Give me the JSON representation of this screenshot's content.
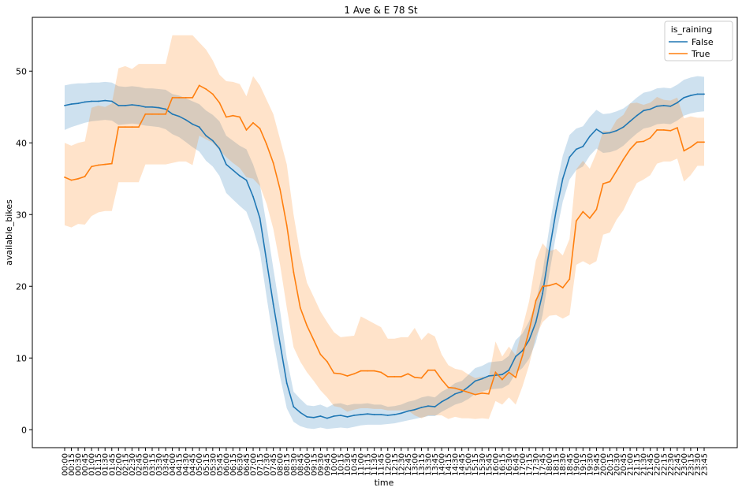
{
  "chart_data": {
    "type": "line",
    "title": "1 Ave & E 78 St",
    "xlabel": "time",
    "ylabel": "available_bikes",
    "ylim": [
      -2.5,
      57.5
    ],
    "yticks": [
      0,
      10,
      20,
      30,
      40,
      50
    ],
    "legend_title": "is_raining",
    "legend_position": "top-right",
    "categories": [
      "00:00",
      "00:15",
      "00:30",
      "00:45",
      "01:00",
      "01:15",
      "01:30",
      "01:45",
      "02:00",
      "02:15",
      "02:30",
      "02:45",
      "03:00",
      "03:15",
      "03:30",
      "03:45",
      "04:00",
      "04:15",
      "04:30",
      "04:45",
      "05:00",
      "05:15",
      "05:30",
      "05:45",
      "06:00",
      "06:15",
      "06:30",
      "06:45",
      "07:00",
      "07:15",
      "07:30",
      "07:45",
      "08:00",
      "08:15",
      "08:30",
      "08:45",
      "09:00",
      "09:15",
      "09:30",
      "09:45",
      "10:00",
      "10:15",
      "10:30",
      "10:45",
      "11:00",
      "11:15",
      "11:30",
      "11:45",
      "12:00",
      "12:15",
      "12:30",
      "12:45",
      "13:00",
      "13:15",
      "13:30",
      "13:45",
      "14:00",
      "14:15",
      "14:30",
      "14:45",
      "15:00",
      "15:15",
      "15:30",
      "15:45",
      "16:00",
      "16:15",
      "16:30",
      "16:45",
      "17:00",
      "17:15",
      "17:30",
      "17:45",
      "18:00",
      "18:15",
      "18:30",
      "18:45",
      "19:00",
      "19:15",
      "19:30",
      "19:45",
      "20:00",
      "20:15",
      "20:30",
      "20:45",
      "21:00",
      "21:15",
      "21:30",
      "21:45",
      "22:00",
      "22:15",
      "22:30",
      "22:45",
      "23:00",
      "23:15",
      "23:30",
      "23:45"
    ],
    "series": [
      {
        "name": "False",
        "color": "#1f77b4",
        "values": [
          45.2,
          45.4,
          45.5,
          45.7,
          45.8,
          45.8,
          45.9,
          45.8,
          45.2,
          45.2,
          45.3,
          45.2,
          45.0,
          45.0,
          44.9,
          44.7,
          44.0,
          43.7,
          43.2,
          42.6,
          42.2,
          41.0,
          40.3,
          39.2,
          37.0,
          36.2,
          35.4,
          34.8,
          32.5,
          29.5,
          23.5,
          17.5,
          12.0,
          6.5,
          3.2,
          2.4,
          1.8,
          1.7,
          1.9,
          1.6,
          1.9,
          2.0,
          1.8,
          2.0,
          2.1,
          2.2,
          2.1,
          2.1,
          2.0,
          2.1,
          2.3,
          2.6,
          2.8,
          3.1,
          3.3,
          3.2,
          3.9,
          4.4,
          5.0,
          5.3,
          6.0,
          6.8,
          7.1,
          7.5,
          7.6,
          7.7,
          8.3,
          10.2,
          11.0,
          12.5,
          15.0,
          19.0,
          25.0,
          30.5,
          35.0,
          38.0,
          39.1,
          39.5,
          40.9,
          41.9,
          41.3,
          41.4,
          41.7,
          42.2,
          43.0,
          43.8,
          44.5,
          44.7,
          45.1,
          45.2,
          45.1,
          45.6,
          46.3,
          46.6,
          46.8,
          46.8
        ],
        "ci_lower": [
          41.8,
          42.2,
          42.5,
          42.8,
          43.0,
          43.1,
          43.2,
          43.1,
          42.5,
          42.6,
          42.7,
          42.6,
          42.4,
          42.3,
          42.2,
          41.9,
          41.2,
          40.8,
          40.1,
          39.4,
          38.8,
          37.5,
          36.7,
          35.4,
          33.0,
          32.1,
          31.2,
          30.4,
          28.0,
          24.8,
          18.5,
          12.5,
          7.4,
          3.0,
          1.1,
          0.5,
          0.2,
          0.1,
          0.3,
          0.1,
          0.2,
          0.3,
          0.2,
          0.4,
          0.6,
          0.7,
          0.7,
          0.7,
          0.8,
          0.9,
          1.1,
          1.3,
          1.5,
          1.7,
          1.9,
          1.9,
          2.5,
          3.0,
          3.5,
          3.8,
          4.3,
          5.0,
          5.3,
          5.6,
          5.7,
          5.8,
          6.3,
          7.9,
          8.6,
          9.9,
          12.2,
          16.0,
          21.8,
          27.2,
          31.8,
          34.9,
          36.2,
          36.7,
          38.2,
          39.2,
          38.6,
          38.7,
          39.0,
          39.6,
          40.5,
          41.3,
          42.0,
          42.2,
          42.6,
          42.7,
          42.6,
          43.1,
          43.8,
          44.1,
          44.3,
          44.4
        ],
        "ci_upper": [
          48.0,
          48.2,
          48.3,
          48.3,
          48.4,
          48.4,
          48.5,
          48.4,
          47.9,
          47.8,
          47.9,
          47.8,
          47.6,
          47.6,
          47.5,
          47.4,
          46.8,
          46.6,
          46.2,
          45.8,
          45.4,
          44.5,
          43.9,
          43.0,
          41.0,
          40.3,
          39.6,
          39.1,
          37.0,
          34.2,
          28.5,
          22.5,
          16.6,
          10.0,
          5.3,
          4.3,
          3.4,
          3.3,
          3.5,
          3.1,
          3.6,
          3.7,
          3.4,
          3.6,
          3.6,
          3.7,
          3.5,
          3.5,
          3.2,
          3.3,
          3.5,
          3.9,
          4.1,
          4.5,
          4.7,
          4.5,
          5.3,
          5.8,
          6.5,
          6.8,
          7.7,
          8.6,
          8.9,
          9.4,
          9.5,
          9.6,
          10.3,
          12.5,
          13.4,
          15.1,
          17.8,
          22.0,
          28.2,
          33.8,
          38.2,
          41.1,
          42.0,
          42.3,
          43.6,
          44.6,
          44.0,
          44.1,
          44.4,
          44.8,
          45.5,
          46.3,
          47.0,
          47.2,
          47.6,
          47.7,
          47.6,
          48.1,
          48.8,
          49.1,
          49.3,
          49.2
        ]
      },
      {
        "name": "True",
        "color": "#ff7f0e",
        "values": [
          35.2,
          34.8,
          35.0,
          35.3,
          36.7,
          36.9,
          37.0,
          37.1,
          42.2,
          42.2,
          42.2,
          42.2,
          44.0,
          44.0,
          44.0,
          44.0,
          46.3,
          46.3,
          46.3,
          46.3,
          48.0,
          47.5,
          46.8,
          45.6,
          43.6,
          43.8,
          43.6,
          41.8,
          42.8,
          42.0,
          39.8,
          37.2,
          33.5,
          28.5,
          22.0,
          17.0,
          14.5,
          12.5,
          10.5,
          9.5,
          7.9,
          7.8,
          7.5,
          7.8,
          8.2,
          8.2,
          8.2,
          8.0,
          7.4,
          7.4,
          7.4,
          7.8,
          7.3,
          7.2,
          8.3,
          8.3,
          7.0,
          5.9,
          5.8,
          5.5,
          5.2,
          4.9,
          5.1,
          5.0,
          8.0,
          7.0,
          8.0,
          7.3,
          10.3,
          13.8,
          18.0,
          20.0,
          20.1,
          20.4,
          19.8,
          21.0,
          29.1,
          30.4,
          29.5,
          30.7,
          34.3,
          34.6,
          36.1,
          37.7,
          39.1,
          40.1,
          40.2,
          40.7,
          41.8,
          41.8,
          41.7,
          42.1,
          38.9,
          39.4,
          40.1,
          40.1
        ],
        "ci_lower": [
          28.5,
          28.2,
          28.7,
          28.6,
          29.8,
          30.3,
          30.5,
          30.5,
          34.5,
          34.5,
          34.5,
          34.5,
          37.0,
          37.0,
          37.0,
          37.0,
          37.2,
          37.4,
          37.4,
          36.9,
          41.0,
          40.5,
          40.0,
          39.0,
          38.0,
          37.2,
          36.5,
          35.2,
          35.0,
          34.0,
          31.5,
          28.0,
          23.0,
          17.0,
          11.5,
          9.5,
          8.0,
          6.8,
          5.5,
          4.5,
          3.3,
          3.1,
          2.5,
          2.8,
          3.0,
          3.0,
          2.9,
          2.9,
          2.7,
          2.7,
          2.7,
          2.7,
          2.0,
          1.6,
          2.0,
          2.0,
          2.0,
          1.5,
          1.8,
          1.6,
          1.6,
          1.5,
          1.6,
          1.5,
          4.0,
          3.5,
          4.5,
          3.5,
          6.0,
          9.0,
          13.0,
          15.0,
          15.9,
          16.0,
          15.5,
          16.0,
          23.0,
          23.5,
          23.0,
          23.5,
          27.2,
          27.5,
          29.3,
          30.6,
          32.6,
          34.4,
          34.9,
          35.5,
          37.1,
          37.4,
          37.4,
          37.8,
          34.6,
          35.5,
          36.8,
          36.8
        ],
        "ci_upper": [
          40.0,
          39.6,
          40.0,
          40.2,
          44.9,
          45.2,
          45.0,
          45.5,
          50.4,
          50.7,
          50.3,
          51.0,
          51.0,
          51.0,
          51.0,
          51.0,
          55.0,
          55.0,
          55.0,
          55.0,
          54.0,
          53.0,
          51.5,
          49.5,
          48.6,
          48.5,
          48.2,
          46.5,
          49.3,
          48.0,
          46.0,
          44.0,
          40.5,
          37.0,
          30.0,
          24.5,
          20.5,
          18.5,
          16.5,
          15.0,
          13.6,
          12.9,
          13.0,
          13.1,
          15.8,
          15.3,
          14.8,
          14.3,
          12.7,
          12.7,
          12.9,
          12.9,
          14.2,
          12.5,
          13.5,
          13.0,
          10.5,
          9.0,
          8.5,
          8.3,
          7.7,
          7.2,
          7.4,
          7.3,
          12.3,
          10.2,
          11.6,
          10.4,
          14.2,
          17.9,
          23.6,
          26.0,
          24.9,
          25.2,
          24.3,
          26.6,
          36.3,
          37.5,
          36.4,
          38.6,
          41.7,
          41.6,
          43.2,
          43.9,
          45.5,
          45.6,
          45.3,
          45.6,
          46.4,
          46.0,
          45.9,
          46.3,
          43.4,
          43.7,
          43.5,
          43.5
        ]
      }
    ]
  }
}
